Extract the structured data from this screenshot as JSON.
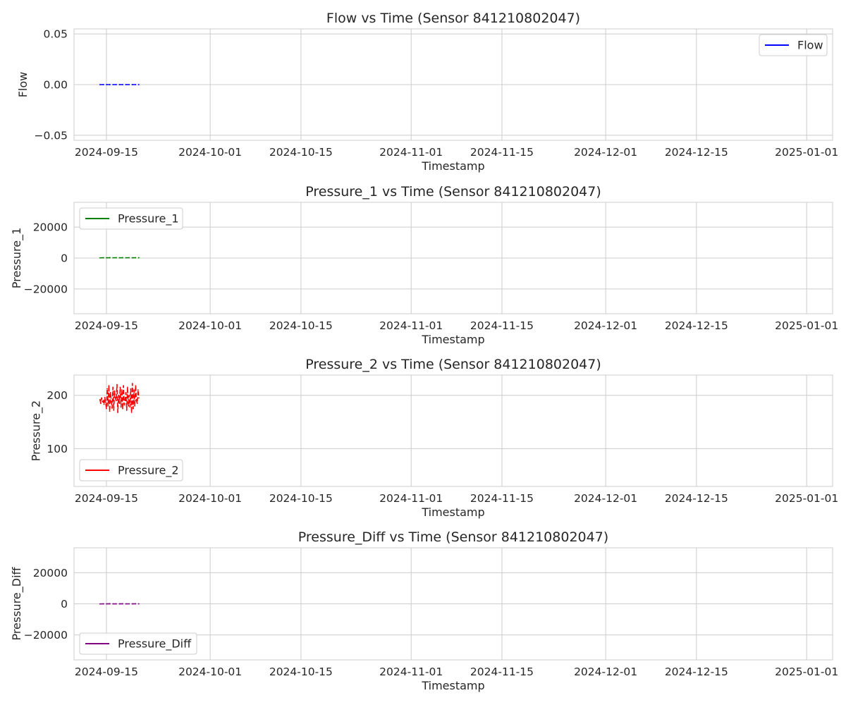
{
  "chart_data": [
    {
      "type": "line",
      "title": "Flow vs Time (Sensor 841210802047)",
      "xlabel": "Timestamp",
      "ylabel": "Flow",
      "xlim": [
        "2024-09-10",
        "2025-01-05"
      ],
      "ylim": [
        -0.055,
        0.055
      ],
      "xticks": [
        "2024-09-15",
        "2024-10-01",
        "2024-10-15",
        "2024-11-01",
        "2024-11-15",
        "2024-12-01",
        "2024-12-15",
        "2025-01-01"
      ],
      "yticks": [
        -0.05,
        0.0,
        0.05
      ],
      "ytick_labels": [
        "−0.05",
        "0.00",
        "0.05"
      ],
      "grid": true,
      "legend_loc": "upper right",
      "series": [
        {
          "name": "Flow",
          "color": "#0000ff",
          "dashed": true,
          "x": [
            "2024-09-14",
            "2024-09-14T12:00",
            "2024-09-15",
            "2024-09-15T12:00",
            "2024-09-16",
            "2024-09-16T12:00",
            "2024-09-17",
            "2024-09-17T12:00",
            "2024-09-18",
            "2024-09-18T12:00",
            "2024-09-19",
            "2024-09-19T12:00",
            "2024-09-20"
          ],
          "y": [
            0,
            0,
            0,
            0,
            0,
            0,
            0,
            0,
            0,
            0,
            0,
            0,
            0
          ]
        }
      ]
    },
    {
      "type": "line",
      "title": "Pressure_1 vs Time (Sensor 841210802047)",
      "xlabel": "Timestamp",
      "ylabel": "Pressure_1",
      "xlim": [
        "2024-09-10",
        "2025-01-05"
      ],
      "ylim": [
        -36000,
        36000
      ],
      "xticks": [
        "2024-09-15",
        "2024-10-01",
        "2024-10-15",
        "2024-11-01",
        "2024-11-15",
        "2024-12-01",
        "2024-12-15",
        "2025-01-01"
      ],
      "yticks": [
        -20000,
        0,
        20000
      ],
      "ytick_labels": [
        "−20000",
        "0",
        "20000"
      ],
      "grid": true,
      "legend_loc": "upper left",
      "series": [
        {
          "name": "Pressure_1",
          "color": "#008000",
          "dashed": true,
          "x": [
            "2024-09-14",
            "2024-09-14T12:00",
            "2024-09-15",
            "2024-09-15T12:00",
            "2024-09-16",
            "2024-09-16T12:00",
            "2024-09-17",
            "2024-09-17T12:00",
            "2024-09-18",
            "2024-09-18T12:00",
            "2024-09-19",
            "2024-09-19T12:00",
            "2024-09-20"
          ],
          "y": [
            120,
            180,
            150,
            200,
            170,
            190,
            160,
            210,
            175,
            185,
            165,
            205,
            180
          ]
        }
      ]
    },
    {
      "type": "line",
      "title": "Pressure_2 vs Time (Sensor 841210802047)",
      "xlabel": "Timestamp",
      "ylabel": "Pressure_2",
      "xlim": [
        "2024-09-10",
        "2025-01-05"
      ],
      "ylim": [
        29,
        238
      ],
      "xticks": [
        "2024-09-15",
        "2024-10-01",
        "2024-10-15",
        "2024-11-01",
        "2024-11-15",
        "2024-12-01",
        "2024-12-15",
        "2025-01-01"
      ],
      "yticks": [
        100,
        200
      ],
      "ytick_labels": [
        "100",
        "200"
      ],
      "grid": true,
      "legend_loc": "lower left",
      "series": [
        {
          "name": "Pressure_2",
          "color": "#ff0000",
          "dashed": true,
          "x": [
            "2024-09-14",
            "2024-09-14T03:00",
            "2024-09-14T06:00",
            "2024-09-14T09:00",
            "2024-09-14T12:00",
            "2024-09-14T15:00",
            "2024-09-14T18:00",
            "2024-09-14T21:00",
            "2024-09-15",
            "2024-09-15T03:00",
            "2024-09-15T06:00",
            "2024-09-15T09:00",
            "2024-09-15T12:00",
            "2024-09-15T15:00",
            "2024-09-15T18:00",
            "2024-09-15T21:00",
            "2024-09-16",
            "2024-09-16T03:00",
            "2024-09-16T06:00",
            "2024-09-16T09:00",
            "2024-09-16T12:00",
            "2024-09-16T15:00",
            "2024-09-16T18:00",
            "2024-09-16T21:00",
            "2024-09-17",
            "2024-09-17T03:00",
            "2024-09-17T06:00",
            "2024-09-17T09:00",
            "2024-09-17T12:00",
            "2024-09-17T15:00",
            "2024-09-17T18:00",
            "2024-09-17T21:00",
            "2024-09-18",
            "2024-09-18T03:00",
            "2024-09-18T06:00",
            "2024-09-18T09:00",
            "2024-09-18T12:00",
            "2024-09-18T15:00",
            "2024-09-18T18:00",
            "2024-09-18T21:00",
            "2024-09-19",
            "2024-09-19T03:00",
            "2024-09-19T06:00",
            "2024-09-19T09:00",
            "2024-09-19T12:00",
            "2024-09-19T15:00",
            "2024-09-19T18:00",
            "2024-09-19T21:00",
            "2024-09-20"
          ],
          "y": [
            192,
            185,
            195,
            188,
            190,
            183,
            196,
            186,
            175,
            212,
            180,
            218,
            170,
            205,
            188,
            176,
            215,
            172,
            208,
            195,
            190,
            220,
            168,
            200,
            185,
            215,
            178,
            210,
            175,
            218,
            182,
            190,
            205,
            172,
            215,
            180,
            200,
            178,
            212,
            168,
            222,
            175,
            210,
            180,
            218,
            190,
            185,
            210,
            195
          ]
        }
      ]
    },
    {
      "type": "line",
      "title": "Pressure_Diff vs Time (Sensor 841210802047)",
      "xlabel": "Timestamp",
      "ylabel": "Pressure_Diff",
      "xlim": [
        "2024-09-10",
        "2025-01-05"
      ],
      "ylim": [
        -36000,
        36000
      ],
      "xticks": [
        "2024-09-15",
        "2024-10-01",
        "2024-10-15",
        "2024-11-01",
        "2024-11-15",
        "2024-12-01",
        "2024-12-15",
        "2025-01-01"
      ],
      "yticks": [
        -20000,
        0,
        20000
      ],
      "ytick_labels": [
        "−20000",
        "0",
        "20000"
      ],
      "grid": true,
      "legend_loc": "lower left",
      "series": [
        {
          "name": "Pressure_Diff",
          "color": "#800080",
          "dashed": true,
          "x": [
            "2024-09-14",
            "2024-09-14T12:00",
            "2024-09-15",
            "2024-09-15T12:00",
            "2024-09-16",
            "2024-09-16T12:00",
            "2024-09-17",
            "2024-09-17T12:00",
            "2024-09-18",
            "2024-09-18T12:00",
            "2024-09-19",
            "2024-09-19T12:00",
            "2024-09-20"
          ],
          "y": [
            -60,
            -10,
            -40,
            20,
            -20,
            0,
            -30,
            30,
            -15,
            5,
            -25,
            25,
            -5
          ]
        }
      ]
    }
  ]
}
